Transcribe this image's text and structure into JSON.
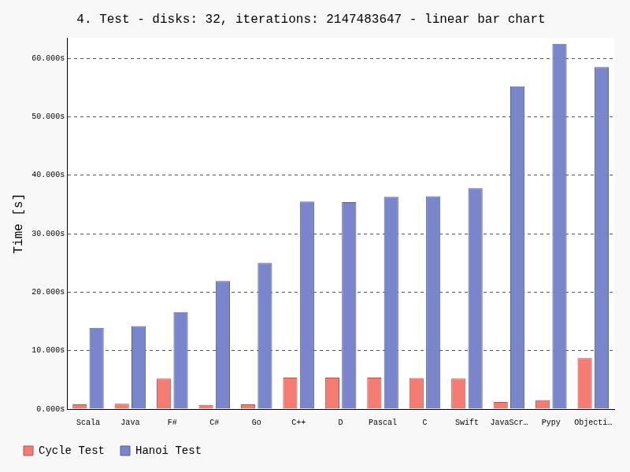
{
  "chart_data": {
    "type": "bar",
    "title": "4. Test - disks: 32, iterations: 2147483647 - linear bar chart",
    "y_label": "Time [s]",
    "categories": [
      "Scala",
      "Java",
      "F#",
      "C#",
      "Go",
      "C++",
      "D",
      "Pascal",
      "C",
      "Swift",
      "JavaScr…",
      "Pypy",
      "Objecti…"
    ],
    "series": [
      {
        "name": "Cycle Test",
        "color": "#f47c72",
        "values": [
          0.8,
          0.9,
          5.2,
          0.7,
          0.8,
          5.4,
          5.4,
          5.4,
          5.3,
          5.2,
          1.2,
          1.5,
          8.7
        ]
      },
      {
        "name": "Hanoi Test",
        "color": "#7986cb",
        "values": [
          13.9,
          14.2,
          16.6,
          21.9,
          25.0,
          35.5,
          35.4,
          36.3,
          36.4,
          37.8,
          55.2,
          62.5,
          58.5
        ]
      }
    ],
    "ylim": [
      0,
      63.5
    ],
    "yticks": [
      {
        "value": 0,
        "label": "0.000s"
      },
      {
        "value": 10,
        "label": "10.000s"
      },
      {
        "value": 20,
        "label": "20.000s"
      },
      {
        "value": 30,
        "label": "30.000s"
      },
      {
        "value": 40,
        "label": "40.000s"
      },
      {
        "value": 50,
        "label": "50.000s"
      },
      {
        "value": 60,
        "label": "60.000s"
      }
    ],
    "grid": true,
    "legend": "bottom"
  }
}
